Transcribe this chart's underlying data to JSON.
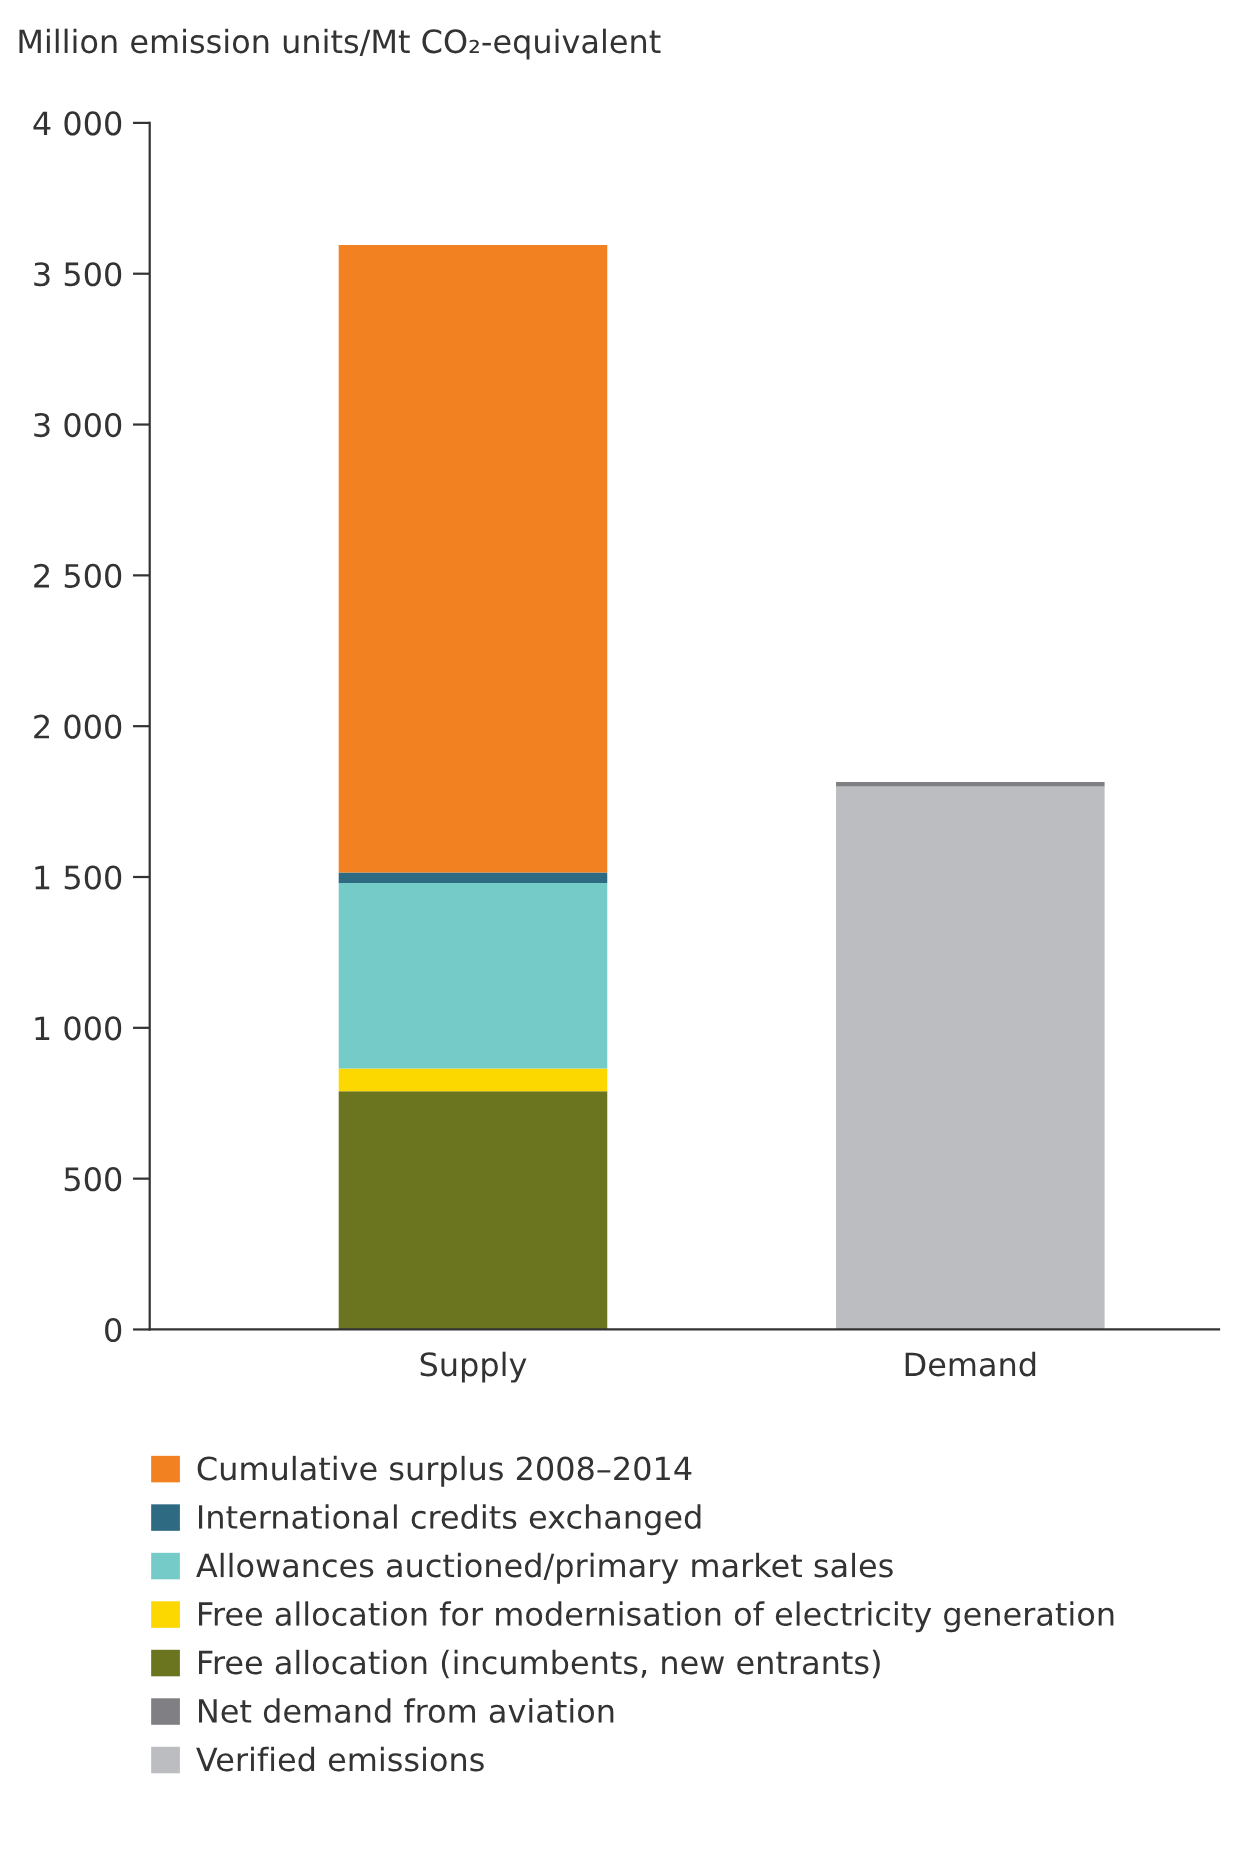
{
  "chart_data": {
    "type": "bar",
    "stacked": true,
    "ylabel": "Million emission units/Mt CO₂-equivalent",
    "categories": [
      "Supply",
      "Demand"
    ],
    "series": [
      {
        "name": "Verified emissions",
        "color": "#bcbdc1",
        "values": [
          null,
          1800
        ]
      },
      {
        "name": "Net demand from aviation",
        "color": "#808084",
        "values": [
          null,
          15
        ]
      },
      {
        "name": "Free allocation (incumbents, new entrants)",
        "color": "#6b7520",
        "values": [
          790,
          null
        ]
      },
      {
        "name": "Free allocation for modernisation of electricity generation",
        "color": "#fcd700",
        "values": [
          75,
          null
        ]
      },
      {
        "name": "Allowances auctioned/primary market sales",
        "color": "#75cbc8",
        "values": [
          615,
          null
        ]
      },
      {
        "name": "International credits exchanged",
        "color": "#2e6a82",
        "values": [
          35,
          null
        ]
      },
      {
        "name": "Cumulative surplus 2008–2014",
        "color": "#f28121",
        "values": [
          2080,
          null
        ]
      }
    ],
    "ylim": [
      0,
      4000
    ],
    "yticks": [
      0,
      500,
      {
        "value": 1000,
        "label": "1 000"
      },
      {
        "value": 1500,
        "label": "1 500"
      },
      {
        "value": 2000,
        "label": "2 000"
      },
      {
        "value": 2500,
        "label": "2 500"
      },
      {
        "value": 3000,
        "label": "3 000"
      },
      {
        "value": 3500,
        "label": "3 500"
      },
      {
        "value": 4000,
        "label": "4 000"
      }
    ],
    "legend": "bottom",
    "grid": false
  }
}
